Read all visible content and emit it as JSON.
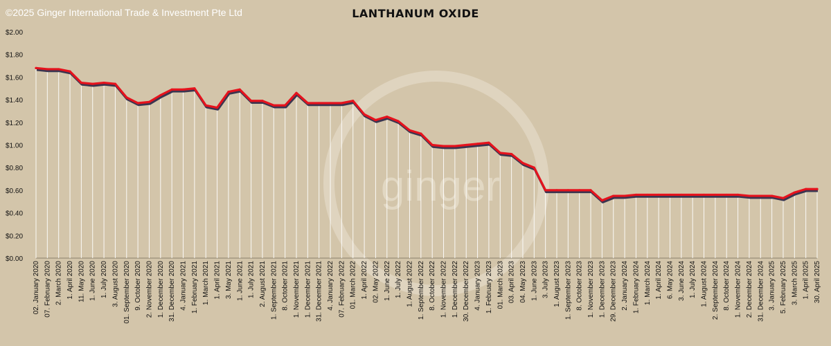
{
  "copyright": "©2025 Ginger International Trade & Investment Pte Ltd",
  "watermark": "ginger",
  "colors": {
    "background": "#d3c5aa",
    "line": "#e5131d",
    "shadow": "#3b3550",
    "drop": "#ffffff",
    "text": "#111111"
  },
  "chart_data": {
    "type": "line",
    "title": "LANTHANUM OXIDE",
    "ylim": [
      0,
      2
    ],
    "yticks": [
      "$0.00",
      "$0.20",
      "$0.40",
      "$0.60",
      "$0.80",
      "$1.00",
      "$1.20",
      "$1.40",
      "$1.60",
      "$1.80",
      "$2.00"
    ],
    "grid": false,
    "legend": "none",
    "x": [
      "02. January 2020",
      "07. February 2020",
      "2. March 2020",
      "1. April 2020",
      "11. May 2020",
      "1. June 2020",
      "1. July 2020",
      "3. August 2020",
      "01. September 2020",
      "9. October 2020",
      "2. November 2020",
      "1. December 2020",
      "31. December 2020",
      "4. January 2021",
      "1. February 2021",
      "1. March 2021",
      "1. April 2021",
      "3. May 2021",
      "1. June 2021",
      "1. July 2021",
      "2. August 2021",
      "1. September 2021",
      "8. October 2021",
      "1. November 2021",
      "1. December 2021",
      "31. December 2021",
      "4. January 2022",
      "07. February 2022",
      "01. March 2022",
      "1. April 2022",
      "02. May 2022",
      "1. June 2022",
      "1. July 2022",
      "1. August 2022",
      "1. September 2022",
      "8. October 2022",
      "1. November 2022",
      "1. December 2022",
      "30. December 2022",
      "4. January 2023",
      "1. February 2023",
      "01. March 2023",
      "03. April 2023",
      "04. May 2023",
      "1. June 2023",
      "3. July 2023",
      "1. August 2023",
      "1. September 2023",
      "8. October 2023",
      "1. November 2023",
      "1. December 2023",
      "29. December 2023",
      "2. January 2024",
      "1. February 2024",
      "1. March 2024",
      "1. April 2024",
      "6. May 2024",
      "3. June 2024",
      "1. July 2024",
      "1. August 2024",
      "2. September 2024",
      "8. October 2024",
      "1. November 2024",
      "2. December 2024",
      "31. December 2024",
      "3. January 2025",
      "5. February 2025",
      "3. March 2025",
      "1. April 2025",
      "30. April 2025"
    ],
    "series": [
      {
        "values": [
          1.68,
          1.67,
          1.67,
          1.65,
          1.55,
          1.54,
          1.55,
          1.54,
          1.42,
          1.37,
          1.38,
          1.44,
          1.49,
          1.49,
          1.5,
          1.35,
          1.33,
          1.47,
          1.49,
          1.39,
          1.39,
          1.35,
          1.35,
          1.46,
          1.37,
          1.37,
          1.37,
          1.37,
          1.39,
          1.27,
          1.22,
          1.25,
          1.21,
          1.13,
          1.1,
          1.0,
          0.99,
          0.99,
          1.0,
          1.01,
          1.02,
          0.93,
          0.92,
          0.84,
          0.8,
          0.6,
          0.6,
          0.6,
          0.6,
          0.6,
          0.51,
          0.55,
          0.55,
          0.56,
          0.56,
          0.56,
          0.56,
          0.56,
          0.56,
          0.56,
          0.56,
          0.56,
          0.56,
          0.55,
          0.55,
          0.55,
          0.53,
          0.58,
          0.61,
          0.61
        ]
      }
    ]
  }
}
